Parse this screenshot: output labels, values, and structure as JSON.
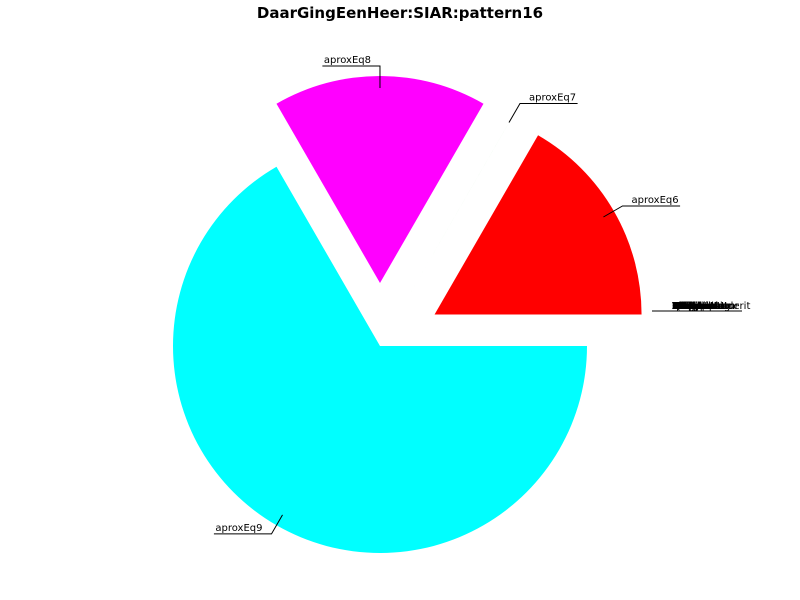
{
  "chart_data": {
    "type": "pie",
    "title": "DaarGingEenHeer:SIAR:pattern16",
    "start_angle_deg": 0,
    "direction": "counterclockwise",
    "slices": [
      {
        "label": "aproxEq6",
        "value": 16.667,
        "color": "#ff0000",
        "exploded": true
      },
      {
        "label": "aproxEq7",
        "value": 0.001,
        "color": "#00cc00",
        "exploded": true
      },
      {
        "label": "aproxEq8",
        "value": 16.667,
        "color": "#ff00ff",
        "exploded": true
      },
      {
        "label": "aproxEq9",
        "value": 66.666,
        "color": "#00ffff",
        "exploded": false
      }
    ],
    "overlapping_labels": [
      "Lorem",
      "Ipsum",
      "Dolor",
      "Amet",
      "Sit",
      "Consectetur",
      "Adipiscing",
      "Elit",
      "Sed",
      "Tempor",
      "Incididunt",
      "Labore",
      "Magna",
      "Aliqua",
      "Veniam",
      "Quis",
      "Nostrud",
      "Exercitation",
      "Ullamco",
      "Laboris",
      "Nisi",
      "Aliquip",
      "Commodo",
      "Consequat",
      "Duis",
      "Aute",
      "Irure",
      "Reprehenderit",
      "Voluptate",
      "Velit",
      "Esse",
      "Cillum",
      "Fugiat",
      "Nulla",
      "Pariatur",
      "Excepteur",
      "Sint",
      "Occaecat",
      "Cupidatat",
      "Proident",
      "Sunt",
      "Culpa",
      "Officia",
      "Deserunt",
      "Mollit",
      "Anim",
      "Laborum",
      "Utlabore",
      "Duisaute",
      "Nostrum",
      "Ullam",
      "Corporis",
      "Suscipit",
      "Laboriosam"
    ]
  }
}
